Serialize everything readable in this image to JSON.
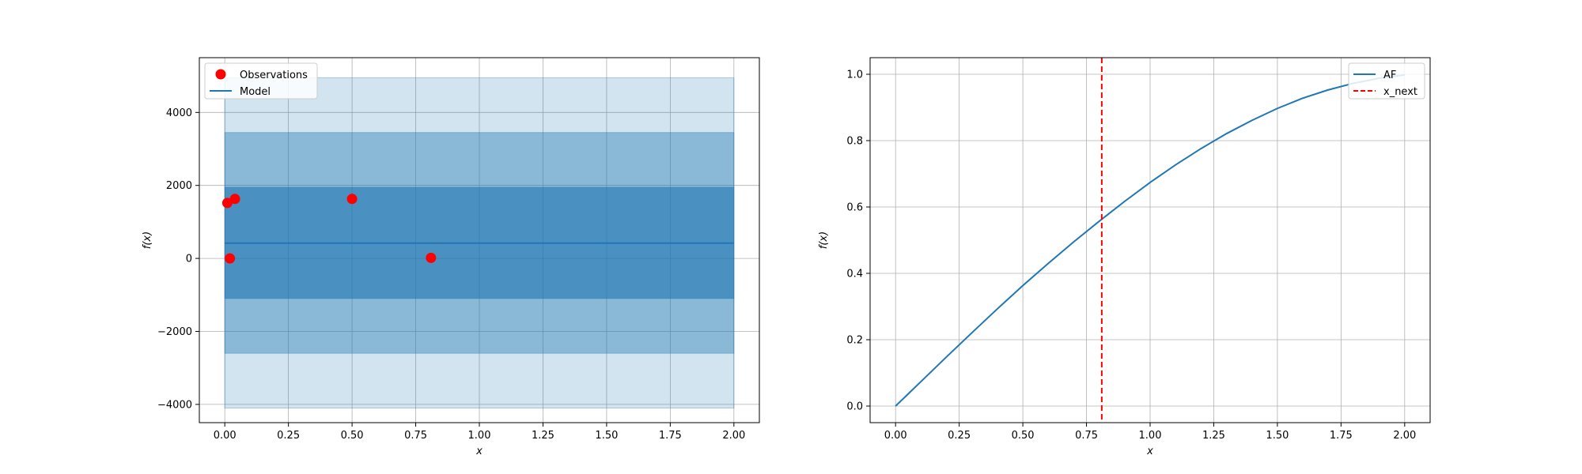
{
  "chart_data": [
    {
      "type": "line",
      "title": "",
      "xlabel": "x",
      "ylabel": "f(x)",
      "xlim": [
        -0.1,
        2.1
      ],
      "ylim": [
        -4500,
        5500
      ],
      "x_ticks": [
        0.0,
        0.25,
        0.5,
        0.75,
        1.0,
        1.25,
        1.5,
        1.75,
        2.0
      ],
      "x_tick_labels": [
        "0.00",
        "0.25",
        "0.50",
        "0.75",
        "1.00",
        "1.25",
        "1.50",
        "1.75",
        "2.00"
      ],
      "y_ticks": [
        -4000,
        -2000,
        0,
        2000,
        4000
      ],
      "y_tick_labels": [
        "−4000",
        "−2000",
        "0",
        "2000",
        "4000"
      ],
      "grid": true,
      "legend_position": "top-left",
      "legend": [
        "Observations",
        "Model"
      ],
      "observations": {
        "name": "Observations",
        "color": "#ff0000",
        "x": [
          0.01,
          0.02,
          0.04,
          0.5,
          0.81
        ],
        "y": [
          1520,
          0,
          1630,
          1630,
          15
        ]
      },
      "model": {
        "name": "Model",
        "color": "#1f77b4",
        "x": [
          0.0,
          2.0
        ],
        "y": [
          420,
          420
        ]
      },
      "bands": [
        {
          "lower": -4100,
          "upper": 4950,
          "opacity": 0.2
        },
        {
          "lower": -2600,
          "upper": 3450,
          "opacity": 0.4
        },
        {
          "lower": -1100,
          "upper": 1950,
          "opacity": 0.6
        }
      ]
    },
    {
      "type": "line",
      "title": "",
      "xlabel": "x",
      "ylabel": "f(x)",
      "xlim": [
        -0.1,
        2.1
      ],
      "ylim": [
        -0.05,
        1.05
      ],
      "x_ticks": [
        0.0,
        0.25,
        0.5,
        0.75,
        1.0,
        1.25,
        1.5,
        1.75,
        2.0
      ],
      "x_tick_labels": [
        "0.00",
        "0.25",
        "0.50",
        "0.75",
        "1.00",
        "1.25",
        "1.50",
        "1.75",
        "2.00"
      ],
      "y_ticks": [
        0.0,
        0.2,
        0.4,
        0.6,
        0.8,
        1.0
      ],
      "y_tick_labels": [
        "0.0",
        "0.2",
        "0.4",
        "0.6",
        "0.8",
        "1.0"
      ],
      "grid": true,
      "legend_position": "top-right",
      "legend": [
        "AF",
        "x_next"
      ],
      "af": {
        "name": "AF",
        "color": "#1f77b4",
        "x": [
          0.0,
          0.1,
          0.2,
          0.3,
          0.4,
          0.5,
          0.6,
          0.7,
          0.8,
          0.9,
          1.0,
          1.1,
          1.2,
          1.3,
          1.4,
          1.5,
          1.6,
          1.7,
          1.8,
          1.9,
          2.0
        ],
        "y": [
          0.0,
          0.074,
          0.148,
          0.221,
          0.293,
          0.363,
          0.43,
          0.495,
          0.557,
          0.617,
          0.674,
          0.727,
          0.776,
          0.821,
          0.861,
          0.897,
          0.928,
          0.953,
          0.973,
          0.988,
          0.998
        ]
      },
      "x_next": {
        "name": "x_next",
        "color": "#ff0000",
        "x": 0.81
      }
    }
  ]
}
